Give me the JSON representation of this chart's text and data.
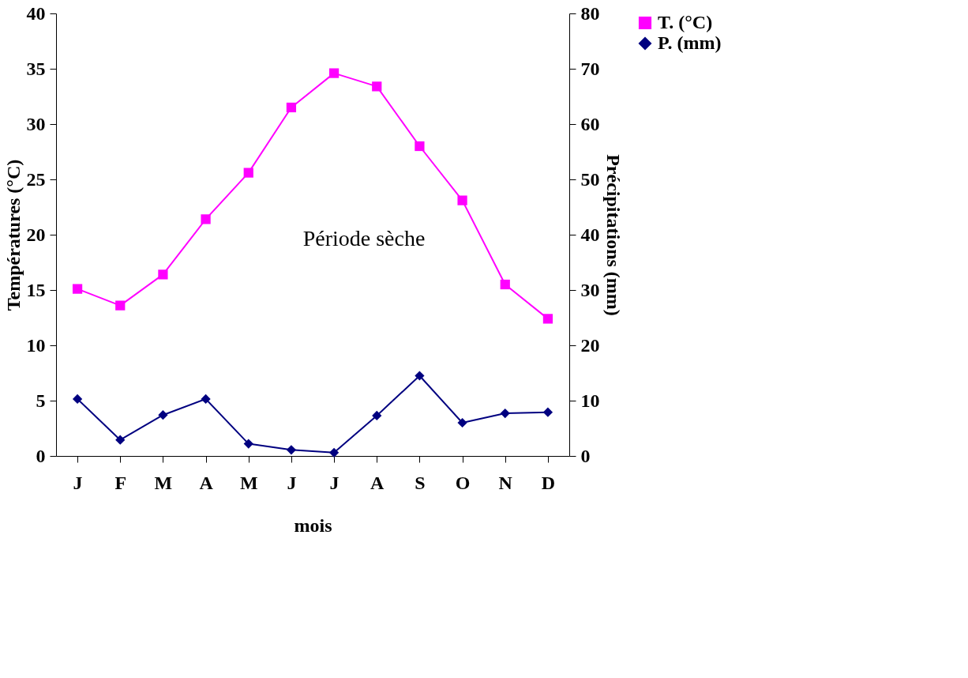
{
  "chart_data": {
    "type": "line",
    "xlabel": "mois",
    "ylabel": "Températures (°C)",
    "y2label": "Précipitations (mm)",
    "categories": [
      "J",
      "F",
      "M",
      "A",
      "M",
      "J",
      "J",
      "A",
      "S",
      "O",
      "N",
      "D"
    ],
    "series": [
      {
        "name": "T. (°C)",
        "color": "#ff00ff",
        "marker": "square",
        "values": [
          15.1,
          13.6,
          16.4,
          21.4,
          25.6,
          31.5,
          34.6,
          33.4,
          28.0,
          23.1,
          15.5,
          12.4
        ]
      },
      {
        "name": "P. (mm)",
        "color": "#000080",
        "marker": "diamond",
        "axis": "y2",
        "values": [
          10.3,
          2.9,
          7.4,
          10.3,
          2.2,
          1.1,
          0.6,
          7.3,
          14.5,
          6.0,
          7.7,
          7.9
        ]
      }
    ],
    "ylim": [
      0,
      40
    ],
    "yticks": [
      0,
      5,
      10,
      15,
      20,
      25,
      30,
      35,
      40
    ],
    "y2lim": [
      0,
      80
    ],
    "y2ticks": [
      0,
      10,
      20,
      30,
      40,
      50,
      60,
      70,
      80
    ],
    "annotations": [
      "Période sèche"
    ],
    "legend": "right",
    "grid": false
  }
}
